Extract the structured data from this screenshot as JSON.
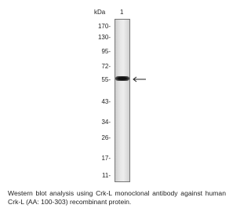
{
  "header": {
    "unit": "kDa",
    "lane": "1"
  },
  "markers": [
    "170-",
    "130-",
    "95-",
    "72-",
    "55-",
    "43-",
    "34-",
    "26-",
    "17-",
    "11-"
  ],
  "caption": "Western blot analysis using Crk-L monoclonal antibody against human Crk-L (AA: 100-303) recombinant protein."
}
